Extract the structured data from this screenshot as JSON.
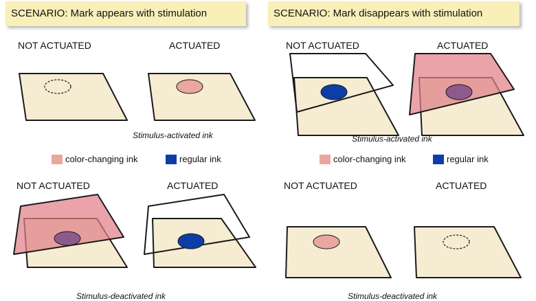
{
  "left": {
    "banner": "SCENARIO: Mark appears with stimulation",
    "top": {
      "label_off": "NOT ACTUATED",
      "label_on": "ACTUATED",
      "caption": "Stimulus-activated ink"
    },
    "bottom": {
      "label_off": "NOT ACTUATED",
      "label_on": "ACTUATED",
      "caption": "Stimulus-deactivated ink"
    },
    "legend": {
      "pink_label": "color-changing ink",
      "blue_label": "regular ink"
    }
  },
  "right": {
    "banner": "SCENARIO: Mark disappears with stimulation",
    "top": {
      "label_off": "NOT ACTUATED",
      "label_on": "ACTUATED",
      "caption": "Stimulus-activated ink"
    },
    "bottom": {
      "label_off": "NOT ACTUATED",
      "label_on": "ACTUATED",
      "caption": "Stimulus-deactivated ink"
    },
    "legend": {
      "pink_label": "color-changing ink",
      "blue_label": "regular ink"
    }
  },
  "colors": {
    "sheet": "#f5ecd2",
    "overlay": "#e07f88",
    "pink_ink": "#e9a7a0",
    "blue_ink": "#0d3ea8",
    "purple_ink": "#8e5a8c",
    "banner": "#f8efb9"
  }
}
